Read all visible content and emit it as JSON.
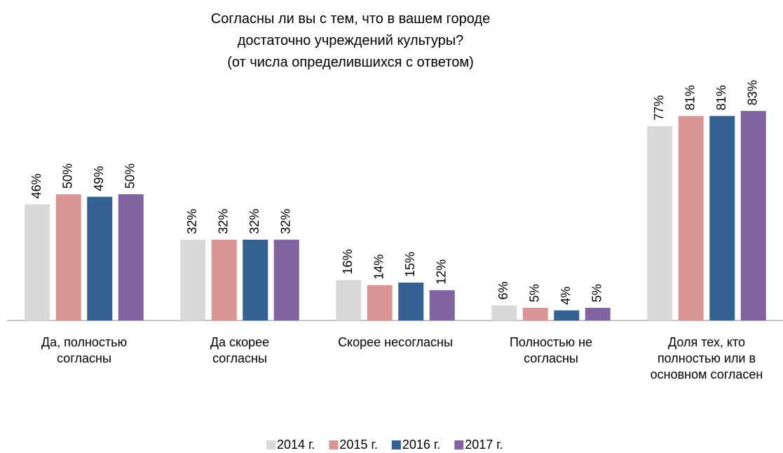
{
  "chart_data": {
    "type": "bar",
    "title": "Согласны ли вы с тем, что в вашем городе\nдостаточно учреждений культуры?\n(от числа определившихся с ответом)",
    "categories": [
      "Да, полностью\nсогласны",
      "Да скорее\nсогласны",
      "Скорее несогласны",
      "Полностью не\nсогласны",
      "Доля тех, кто\nполностью или в\nосновном согласен"
    ],
    "series": [
      {
        "name": "2014 г.",
        "color": "#d9d9d9",
        "values": [
          46,
          32,
          16,
          6,
          77
        ],
        "value_labels": [
          "46%",
          "32%",
          "16%",
          "6%",
          "77%"
        ]
      },
      {
        "name": "2015 г.",
        "color": "#d99694",
        "values": [
          50,
          32,
          14,
          5,
          81
        ],
        "value_labels": [
          "50%",
          "32%",
          "14%",
          "5%",
          "81%"
        ]
      },
      {
        "name": "2016 г.",
        "color": "#346092",
        "values": [
          49,
          32,
          15,
          4,
          81
        ],
        "value_labels": [
          "49%",
          "32%",
          "15%",
          "4%",
          "81%"
        ]
      },
      {
        "name": "2017 г.",
        "color": "#8064a2",
        "values": [
          50,
          32,
          12,
          5,
          83
        ],
        "value_labels": [
          "50%",
          "32%",
          "12%",
          "5%",
          "83%"
        ]
      }
    ],
    "legend": "bottom"
  }
}
